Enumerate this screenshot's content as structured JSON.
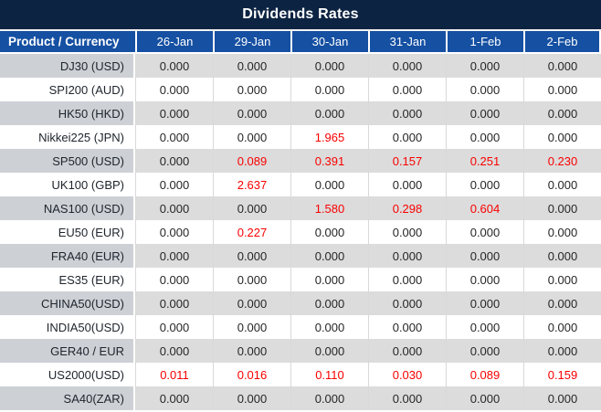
{
  "colors": {
    "banner_bg": "#0d2342",
    "header_bg": "#1550a2",
    "row_gray_label": "#cdd1d6",
    "row_gray_data": "#dcdcdc",
    "grid_line": "#d9d9d9",
    "label_text": "#20262e",
    "value_default": "#262626",
    "value_highlight": "#fa0000"
  },
  "chart_data": {
    "type": "table",
    "title": "Dividends Rates",
    "columns": [
      "Product / Currency",
      "26-Jan",
      "29-Jan",
      "30-Jan",
      "31-Jan",
      "1-Feb",
      "2-Feb"
    ],
    "rows": [
      {
        "product": "DJ30 (USD)",
        "values": [
          "0.000",
          "0.000",
          "0.000",
          "0.000",
          "0.000",
          "0.000"
        ],
        "highlight": [
          false,
          false,
          false,
          false,
          false,
          false
        ]
      },
      {
        "product": "SPI200 (AUD)",
        "values": [
          "0.000",
          "0.000",
          "0.000",
          "0.000",
          "0.000",
          "0.000"
        ],
        "highlight": [
          false,
          false,
          false,
          false,
          false,
          false
        ]
      },
      {
        "product": "HK50 (HKD)",
        "values": [
          "0.000",
          "0.000",
          "0.000",
          "0.000",
          "0.000",
          "0.000"
        ],
        "highlight": [
          false,
          false,
          false,
          false,
          false,
          false
        ]
      },
      {
        "product": "Nikkei225 (JPN)",
        "values": [
          "0.000",
          "0.000",
          "1.965",
          "0.000",
          "0.000",
          "0.000"
        ],
        "highlight": [
          false,
          false,
          true,
          false,
          false,
          false
        ]
      },
      {
        "product": "SP500 (USD)",
        "values": [
          "0.000",
          "0.089",
          "0.391",
          "0.157",
          "0.251",
          "0.230"
        ],
        "highlight": [
          false,
          true,
          true,
          true,
          true,
          true
        ]
      },
      {
        "product": "UK100 (GBP)",
        "values": [
          "0.000",
          "2.637",
          "0.000",
          "0.000",
          "0.000",
          "0.000"
        ],
        "highlight": [
          false,
          true,
          false,
          false,
          false,
          false
        ]
      },
      {
        "product": "NAS100 (USD)",
        "values": [
          "0.000",
          "0.000",
          "1.580",
          "0.298",
          "0.604",
          "0.000"
        ],
        "highlight": [
          false,
          false,
          true,
          true,
          true,
          false
        ]
      },
      {
        "product": "EU50 (EUR)",
        "values": [
          "0.000",
          "0.227",
          "0.000",
          "0.000",
          "0.000",
          "0.000"
        ],
        "highlight": [
          false,
          true,
          false,
          false,
          false,
          false
        ]
      },
      {
        "product": "FRA40 (EUR)",
        "values": [
          "0.000",
          "0.000",
          "0.000",
          "0.000",
          "0.000",
          "0.000"
        ],
        "highlight": [
          false,
          false,
          false,
          false,
          false,
          false
        ]
      },
      {
        "product": "ES35 (EUR)",
        "values": [
          "0.000",
          "0.000",
          "0.000",
          "0.000",
          "0.000",
          "0.000"
        ],
        "highlight": [
          false,
          false,
          false,
          false,
          false,
          false
        ]
      },
      {
        "product": "CHINA50(USD)",
        "values": [
          "0.000",
          "0.000",
          "0.000",
          "0.000",
          "0.000",
          "0.000"
        ],
        "highlight": [
          false,
          false,
          false,
          false,
          false,
          false
        ]
      },
      {
        "product": "INDIA50(USD)",
        "values": [
          "0.000",
          "0.000",
          "0.000",
          "0.000",
          "0.000",
          "0.000"
        ],
        "highlight": [
          false,
          false,
          false,
          false,
          false,
          false
        ]
      },
      {
        "product": "GER40 / EUR",
        "values": [
          "0.000",
          "0.000",
          "0.000",
          "0.000",
          "0.000",
          "0.000"
        ],
        "highlight": [
          false,
          false,
          false,
          false,
          false,
          false
        ]
      },
      {
        "product": "US2000(USD)",
        "values": [
          "0.011",
          "0.016",
          "0.110",
          "0.030",
          "0.089",
          "0.159"
        ],
        "highlight": [
          true,
          true,
          true,
          true,
          true,
          true
        ]
      },
      {
        "product": "SA40(ZAR)",
        "values": [
          "0.000",
          "0.000",
          "0.000",
          "0.000",
          "0.000",
          "0.000"
        ],
        "highlight": [
          false,
          false,
          false,
          false,
          false,
          false
        ]
      }
    ]
  }
}
